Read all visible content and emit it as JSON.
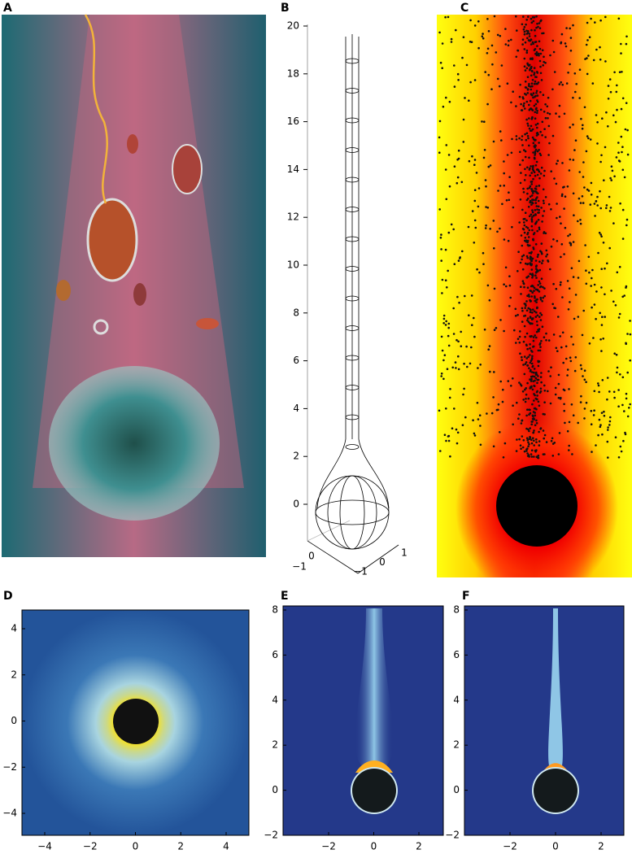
{
  "panels": [
    {
      "label": "A"
    },
    {
      "label": "B",
      "zticks": [
        "0",
        "2",
        "4",
        "6",
        "8",
        "10",
        "12",
        "14",
        "16",
        "18",
        "20"
      ],
      "xticks": [
        "−1",
        "0"
      ],
      "yticks": [
        "−1",
        "0",
        "1"
      ]
    },
    {
      "label": "C"
    },
    {
      "label": "D",
      "yticks": [
        "−4",
        "−2",
        "0",
        "2",
        "4"
      ],
      "xticks": [
        "−4",
        "−2",
        "0",
        "2",
        "4"
      ]
    },
    {
      "label": "E",
      "yticks": [
        "−2",
        "0",
        "2",
        "4",
        "6",
        "8"
      ],
      "xticks": [
        "−2",
        "0",
        "2"
      ]
    },
    {
      "label": "F",
      "yticks": [
        "−2",
        "0",
        "2",
        "4",
        "6",
        "8"
      ],
      "xticks": [
        "−2",
        "0",
        "2"
      ]
    }
  ]
}
